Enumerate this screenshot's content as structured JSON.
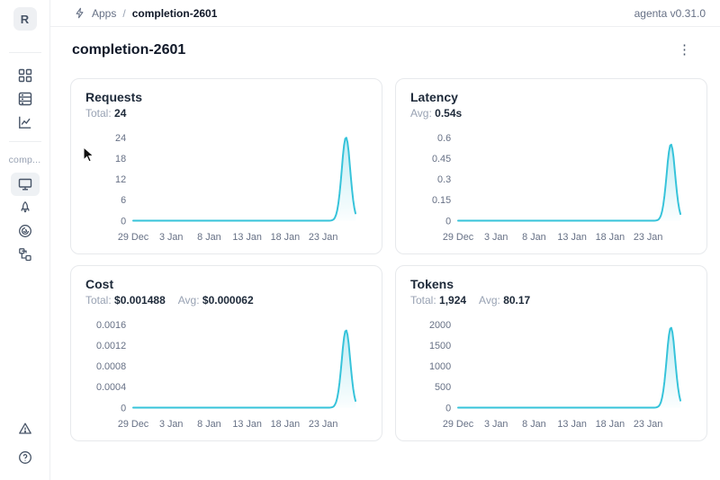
{
  "app": {
    "version": "agenta v0.31.0"
  },
  "breadcrumb": {
    "root": "Apps",
    "separator": "/",
    "current": "completion-2601"
  },
  "page": {
    "title": "completion-2601",
    "menu_icon": "kebab-menu-icon"
  },
  "sidebar": {
    "workspace_initial": "R",
    "app_label": "comp...",
    "items": [
      {
        "name": "app-management",
        "icon": "grid-icon"
      },
      {
        "name": "test-sets",
        "icon": "database-icon"
      },
      {
        "name": "evaluations",
        "icon": "line-chart-icon"
      },
      {
        "name": "overview",
        "icon": "monitor-icon",
        "selected": true
      },
      {
        "name": "playground",
        "icon": "rocket-icon"
      },
      {
        "name": "observability",
        "icon": "swirl-icon"
      },
      {
        "name": "traces",
        "icon": "tree-icon"
      }
    ],
    "bottom_items": [
      {
        "name": "alerts",
        "icon": "warning-triangle-icon"
      },
      {
        "name": "help",
        "icon": "question-circle-icon"
      }
    ]
  },
  "colors": {
    "line": "#36c3da",
    "fill_top": "rgba(54,195,218,0.30)",
    "fill_bottom": "rgba(54,195,218,0.02)",
    "axis_text": "#667085"
  },
  "chart_data": [
    {
      "type": "line",
      "title": "Requests",
      "stats": [
        {
          "label": "Total:",
          "value": "24"
        }
      ],
      "y_ticks": [
        "0",
        "6",
        "12",
        "18",
        "24"
      ],
      "ylim": [
        0,
        24
      ],
      "x_ticks": [
        {
          "label": "29 Dec",
          "day": 0
        },
        {
          "label": "3 Jan",
          "day": 5
        },
        {
          "label": "8 Jan",
          "day": 10
        },
        {
          "label": "13 Jan",
          "day": 15
        },
        {
          "label": "18 Jan",
          "day": 20
        },
        {
          "label": "23 Jan",
          "day": 25
        }
      ],
      "days_total": 29.3,
      "peak_value": 24,
      "peak_day": 28,
      "sigma": 0.8,
      "points": [
        [
          "29 Dec",
          0
        ],
        [
          "3 Jan",
          0
        ],
        [
          "8 Jan",
          0
        ],
        [
          "13 Jan",
          0
        ],
        [
          "18 Jan",
          0
        ],
        [
          "23 Jan",
          0
        ],
        [
          "25 Jan",
          0
        ],
        [
          "26 Jan",
          24
        ],
        [
          "27 Jan",
          0
        ]
      ]
    },
    {
      "type": "line",
      "title": "Latency",
      "stats": [
        {
          "label": "Avg:",
          "value": "0.54s"
        }
      ],
      "y_ticks": [
        "0",
        "0.15",
        "0.3",
        "0.45",
        "0.6"
      ],
      "ylim": [
        0,
        0.6
      ],
      "x_ticks": [
        {
          "label": "29 Dec",
          "day": 0
        },
        {
          "label": "3 Jan",
          "day": 5
        },
        {
          "label": "8 Jan",
          "day": 10
        },
        {
          "label": "13 Jan",
          "day": 15
        },
        {
          "label": "18 Jan",
          "day": 20
        },
        {
          "label": "23 Jan",
          "day": 25
        }
      ],
      "days_total": 29.3,
      "peak_value": 0.55,
      "peak_day": 28,
      "sigma": 0.8,
      "points": [
        [
          "29 Dec",
          0
        ],
        [
          "3 Jan",
          0
        ],
        [
          "8 Jan",
          0
        ],
        [
          "13 Jan",
          0
        ],
        [
          "18 Jan",
          0
        ],
        [
          "23 Jan",
          0
        ],
        [
          "25 Jan",
          0
        ],
        [
          "26 Jan",
          0.55
        ],
        [
          "27 Jan",
          0
        ]
      ]
    },
    {
      "type": "line",
      "title": "Cost",
      "stats": [
        {
          "label": "Total:",
          "value": "$0.001488"
        },
        {
          "label": "Avg:",
          "value": "$0.000062"
        }
      ],
      "y_ticks": [
        "0",
        "0.0004",
        "0.0008",
        "0.0012",
        "0.0016"
      ],
      "ylim": [
        0,
        0.0016
      ],
      "x_ticks": [
        {
          "label": "29 Dec",
          "day": 0
        },
        {
          "label": "3 Jan",
          "day": 5
        },
        {
          "label": "8 Jan",
          "day": 10
        },
        {
          "label": "13 Jan",
          "day": 15
        },
        {
          "label": "18 Jan",
          "day": 20
        },
        {
          "label": "23 Jan",
          "day": 25
        }
      ],
      "days_total": 29.3,
      "peak_value": 0.001488,
      "peak_day": 28,
      "sigma": 0.8,
      "points": [
        [
          "29 Dec",
          0
        ],
        [
          "3 Jan",
          0
        ],
        [
          "8 Jan",
          0
        ],
        [
          "13 Jan",
          0
        ],
        [
          "18 Jan",
          0
        ],
        [
          "23 Jan",
          0
        ],
        [
          "25 Jan",
          0
        ],
        [
          "26 Jan",
          0.001488
        ],
        [
          "27 Jan",
          0
        ]
      ]
    },
    {
      "type": "line",
      "title": "Tokens",
      "stats": [
        {
          "label": "Total:",
          "value": "1,924"
        },
        {
          "label": "Avg:",
          "value": "80.17"
        }
      ],
      "y_ticks": [
        "0",
        "500",
        "1000",
        "1500",
        "2000"
      ],
      "ylim": [
        0,
        2000
      ],
      "x_ticks": [
        {
          "label": "29 Dec",
          "day": 0
        },
        {
          "label": "3 Jan",
          "day": 5
        },
        {
          "label": "8 Jan",
          "day": 10
        },
        {
          "label": "13 Jan",
          "day": 15
        },
        {
          "label": "18 Jan",
          "day": 20
        },
        {
          "label": "23 Jan",
          "day": 25
        }
      ],
      "days_total": 29.3,
      "peak_value": 1924,
      "peak_day": 28,
      "sigma": 0.8,
      "points": [
        [
          "29 Dec",
          0
        ],
        [
          "3 Jan",
          0
        ],
        [
          "8 Jan",
          0
        ],
        [
          "13 Jan",
          0
        ],
        [
          "18 Jan",
          0
        ],
        [
          "23 Jan",
          0
        ],
        [
          "25 Jan",
          0
        ],
        [
          "26 Jan",
          1924
        ],
        [
          "27 Jan",
          0
        ]
      ]
    }
  ]
}
